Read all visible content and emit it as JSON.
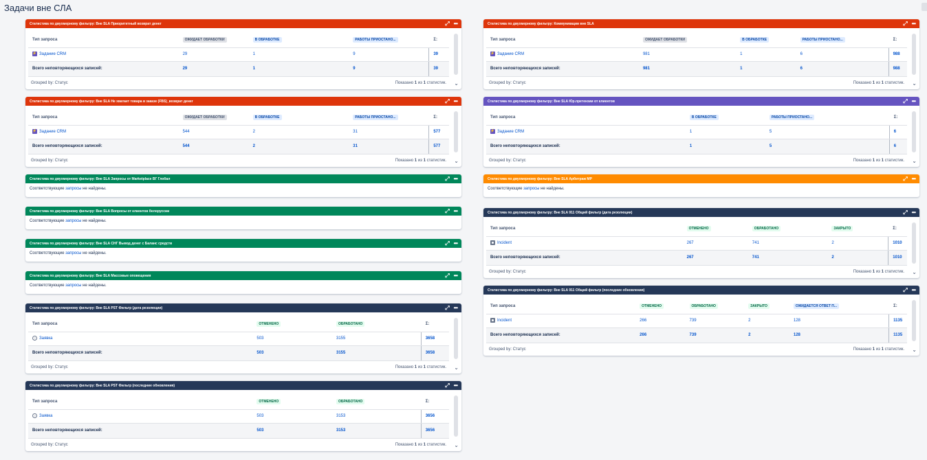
{
  "page_title": "Задачи вне СЛА",
  "common": {
    "type_header": "Тип запроса",
    "total_label": "Всего неповторяющихся записей:",
    "total_col": "Σ:",
    "grouped_by": "Grouped by: Статус",
    "shown_prefix": "Показано",
    "shown_1": "1",
    "shown_of": "из",
    "shown_2": "1",
    "shown_suffix": "статистик.",
    "empty_prefix": "Соответствующие",
    "empty_link": "запросы",
    "empty_suffix": "не найдены."
  },
  "gadgets": {
    "g1": {
      "title": "Статистика по двухмерному фильтру: Вне SLA Приоритетный возврат денег",
      "color": "#de350b",
      "cols": [
        "ОЖИДАЕТ ОБРАБОТКИ",
        "В ОБРАБОТКЕ",
        "РАБОТЫ ПРИОСТАНО..."
      ],
      "row_label": "Задание CRM",
      "row": [
        "29",
        "1",
        "9"
      ],
      "row_total": "39",
      "tot": [
        "29",
        "1",
        "9"
      ],
      "tot_total": "39"
    },
    "g2": {
      "title": "Статистика по двухмерному фильтру: Вне SLA Не хватает товара в заказе (FBS)_возврат денег",
      "color": "#de350b",
      "cols": [
        "ОЖИДАЕТ ОБРАБОТКИ",
        "В ОБРАБОТКЕ",
        "РАБОТЫ ПРИОСТАНО..."
      ],
      "row_label": "Задание CRM",
      "row": [
        "544",
        "2",
        "31"
      ],
      "row_total": "577",
      "tot": [
        "544",
        "2",
        "31"
      ],
      "tot_total": "577"
    },
    "g3": {
      "title": "Статистика по двухмерному фильтру: Вне SLA Запросы от Marketplace ВГ Глобал",
      "color": "#00875a"
    },
    "g4": {
      "title": "Статистика по двухмерному фильтру: Вне SLA Вопросы от клиентов белоруссии",
      "color": "#00875a"
    },
    "g5": {
      "title": "Статистика по двухмерному фильтру: Вне SLA СНГ Вывод денег с Баланс средств",
      "color": "#00875a"
    },
    "g6": {
      "title": "Статистика по двухмерному фильтру: Вне SLA Массовые оповещения",
      "color": "#00875a"
    },
    "g7": {
      "title": "Статистика по двухмерному фильтру: Вне SLA PST Фильтр (дата резолюции)",
      "color": "#253858",
      "cols": [
        "ОТМЕНЕНО",
        "ОБРАБОТАНО"
      ],
      "row_label": "Заявка",
      "row": [
        "503",
        "3155"
      ],
      "row_total": "3658",
      "tot": [
        "503",
        "3155"
      ],
      "tot_total": "3658"
    },
    "g8": {
      "title": "Статистика по двухмерному фильтру: Вне SLA PST Фильтр (последние обновления)",
      "color": "#253858",
      "cols": [
        "ОТМЕНЕНО",
        "ОБРАБОТАНО"
      ],
      "row_label": "Заявка",
      "row": [
        "503",
        "3153"
      ],
      "row_total": "3656",
      "tot": [
        "503",
        "3153"
      ],
      "tot_total": "3656"
    },
    "r1": {
      "title": "Статистика по двухмерному фильтру: Коммуникации вне SLA",
      "color": "#de350b",
      "cols": [
        "ОЖИДАЕТ ОБРАБОТКИ",
        "В ОБРАБОТКЕ",
        "РАБОТЫ ПРИОСТАНО..."
      ],
      "row_label": "Задание CRM",
      "row": [
        "981",
        "1",
        "6"
      ],
      "row_total": "988",
      "tot": [
        "981",
        "1",
        "6"
      ],
      "tot_total": "988"
    },
    "r2": {
      "title": "Статистика по двухмерному фильтру: Вне SLA Юр.претензии от клиентов",
      "color": "#6554c0",
      "cols": [
        "В ОБРАБОТКЕ",
        "РАБОТЫ ПРИОСТАНО..."
      ],
      "row_label": "Задание CRM",
      "row": [
        "1",
        "5"
      ],
      "row_total": "6",
      "tot": [
        "1",
        "5"
      ],
      "tot_total": "6"
    },
    "r3": {
      "title": "Статистика по двухмерному фильтру: Вне SLA Арбитраж МР",
      "color": "#ff8b00"
    },
    "r4": {
      "title": "Статистика по двухмерному фильтру: Вне SLA 911 Общий фильтр (дата резолюции)",
      "color": "#253858",
      "cols": [
        "ОТМЕНЕНО",
        "ОБРАБОТАНО",
        "ЗАКРЫТО"
      ],
      "row_label": "Incident",
      "row": [
        "267",
        "741",
        "2"
      ],
      "row_total": "1010",
      "tot": [
        "267",
        "741",
        "2"
      ],
      "tot_total": "1010"
    },
    "r5": {
      "title": "Статистика по двухмерному фильтру: Вне SLA 911 Общий фильтр (последние обновления)",
      "color": "#253858",
      "cols": [
        "ОТМЕНЕНО",
        "ОБРАБОТАНО",
        "ЗАКРЫТО",
        "ОЖИДАЕТСЯ ОТВЕТ П..."
      ],
      "row_label": "Incident",
      "row": [
        "266",
        "739",
        "2",
        "128"
      ],
      "row_total": "1135",
      "tot": [
        "266",
        "739",
        "2",
        "128"
      ],
      "tot_total": "1135"
    }
  }
}
